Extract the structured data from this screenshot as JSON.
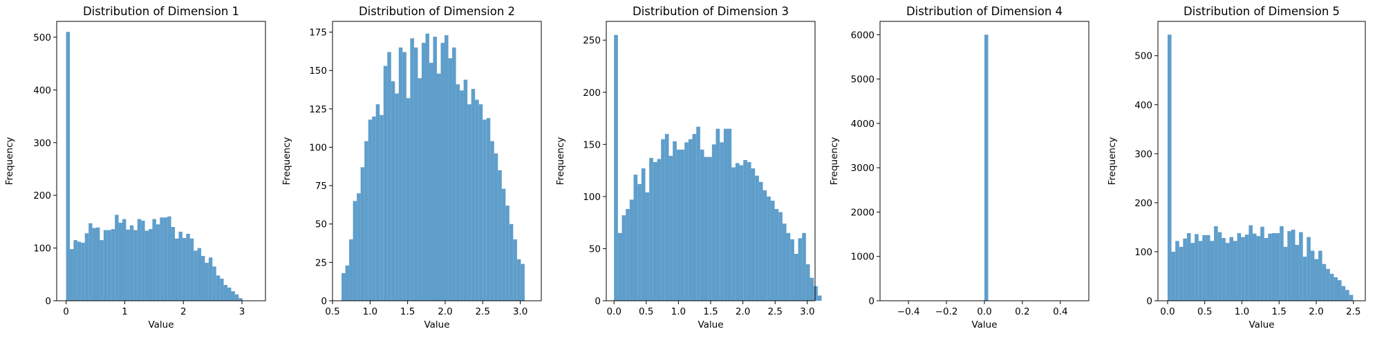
{
  "style": {
    "bar_color": "#5f9ecb",
    "axis_color": "#000000",
    "background": "#ffffff",
    "grid": false
  },
  "chart_data": [
    {
      "type": "bar",
      "title": "Distribution of Dimension 1",
      "xlabel": "Value",
      "ylabel": "Frequency",
      "xlim": [
        -0.16,
        3.4
      ],
      "ylim": [
        0,
        530
      ],
      "xticks": [
        0,
        1,
        2,
        3
      ],
      "yticks": [
        0,
        100,
        200,
        300,
        400,
        500
      ],
      "bin_start": 0.0,
      "bin_width": 0.064,
      "values": [
        510,
        98,
        115,
        112,
        110,
        128,
        147,
        138,
        139,
        115,
        134,
        134,
        136,
        163,
        148,
        155,
        135,
        143,
        134,
        155,
        152,
        133,
        136,
        155,
        145,
        158,
        158,
        160,
        140,
        118,
        131,
        119,
        127,
        118,
        95,
        100,
        85,
        72,
        82,
        65,
        48,
        42,
        30,
        25,
        18,
        12,
        5
      ]
    },
    {
      "type": "bar",
      "title": "Distribution of Dimension 2",
      "xlabel": "Value",
      "ylabel": "Frequency",
      "xlim": [
        0.5,
        3.28
      ],
      "ylim": [
        0,
        182
      ],
      "xticks": [
        0.5,
        1.0,
        1.5,
        2.0,
        2.5,
        3.0
      ],
      "xtick_labels": [
        "0.5",
        "1.0",
        "1.5",
        "2.0",
        "2.5",
        "3.0"
      ],
      "yticks": [
        0,
        25,
        50,
        75,
        100,
        125,
        150,
        175
      ],
      "bin_start": 0.62,
      "bin_width": 0.0508,
      "values": [
        18,
        23,
        40,
        65,
        70,
        87,
        104,
        118,
        120,
        128,
        121,
        153,
        162,
        143,
        135,
        165,
        162,
        132,
        171,
        165,
        145,
        168,
        174,
        155,
        172,
        148,
        168,
        173,
        158,
        165,
        141,
        137,
        144,
        128,
        138,
        131,
        128,
        118,
        119,
        104,
        96,
        85,
        73,
        62,
        50,
        40,
        27,
        24
      ]
    },
    {
      "type": "bar",
      "title": "Distribution of Dimension 3",
      "xlabel": "Value",
      "ylabel": "Frequency",
      "xlim": [
        -0.12,
        3.12
      ],
      "ylim": [
        0,
        268
      ],
      "xticks": [
        0.0,
        0.5,
        1.0,
        1.5,
        2.0,
        2.5,
        3.0
      ],
      "xtick_labels": [
        "0.0",
        "0.5",
        "1.0",
        "1.5",
        "2.0",
        "2.5",
        "3.0"
      ],
      "yticks": [
        0,
        50,
        100,
        150,
        200,
        250
      ],
      "bin_start": 0.0,
      "bin_width": 0.0608,
      "values": [
        255,
        65,
        82,
        88,
        97,
        121,
        112,
        127,
        104,
        137,
        133,
        136,
        155,
        160,
        139,
        153,
        145,
        145,
        152,
        155,
        160,
        167,
        145,
        138,
        138,
        150,
        165,
        152,
        165,
        165,
        128,
        132,
        130,
        135,
        133,
        127,
        120,
        114,
        106,
        100,
        96,
        88,
        85,
        74,
        65,
        59,
        45,
        60,
        65,
        35,
        22,
        14,
        5
      ]
    },
    {
      "type": "bar",
      "title": "Distribution of Dimension 4",
      "xlabel": "Value",
      "ylabel": "Frequency",
      "xlim": [
        -0.55,
        0.55
      ],
      "ylim": [
        0,
        6300
      ],
      "xticks": [
        -0.4,
        -0.2,
        0.0,
        0.2,
        0.4
      ],
      "xtick_labels": [
        "−0.4",
        "−0.2",
        "0.0",
        "0.2",
        "0.4"
      ],
      "yticks": [
        0,
        1000,
        2000,
        3000,
        4000,
        5000,
        6000
      ],
      "bin_start": 0.0,
      "bin_width": 0.02,
      "values": [
        6000
      ]
    },
    {
      "type": "bar",
      "title": "Distribution of Dimension 5",
      "xlabel": "Value",
      "ylabel": "Frequency",
      "xlim": [
        -0.13,
        2.66
      ],
      "ylim": [
        0,
        570
      ],
      "xticks": [
        0.0,
        0.5,
        1.0,
        1.5,
        2.0,
        2.5
      ],
      "xtick_labels": [
        "0.0",
        "0.5",
        "1.0",
        "1.5",
        "2.0",
        "2.5"
      ],
      "yticks": [
        0,
        100,
        200,
        300,
        400,
        500
      ],
      "bin_start": 0.0,
      "bin_width": 0.052,
      "values": [
        543,
        100,
        122,
        110,
        127,
        138,
        118,
        136,
        122,
        134,
        134,
        122,
        152,
        140,
        128,
        118,
        130,
        122,
        138,
        130,
        135,
        154,
        137,
        132,
        151,
        128,
        137,
        138,
        138,
        152,
        110,
        142,
        145,
        114,
        140,
        90,
        130,
        102,
        85,
        102,
        75,
        65,
        55,
        48,
        42,
        30,
        22,
        12
      ]
    }
  ]
}
